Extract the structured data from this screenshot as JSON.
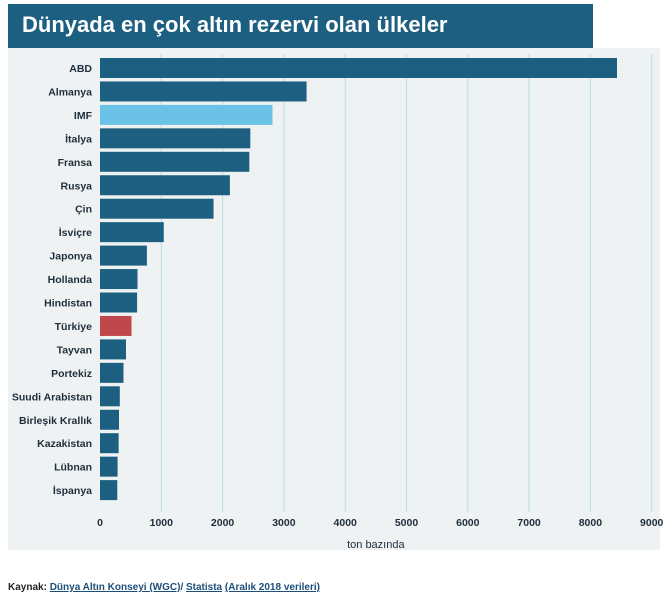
{
  "title": "Dünyada en çok altın rezervi olan ülkeler",
  "footer": {
    "label": "Kaynak:",
    "source1": "Dünya Altın Konseyi (WGC)",
    "separator": "/",
    "source2": "Statista",
    "note": "(Aralık 2018 verileri)"
  },
  "colors": {
    "bar": "#1d5f80",
    "imf": "#6cc1e6",
    "turkey": "#c0474b",
    "title_bg": "#1d5f80",
    "panel_bg": "#eef2f3",
    "grid": "#b9dce0"
  },
  "chart_data": {
    "type": "bar",
    "orientation": "horizontal",
    "title": "Dünyada en çok altın rezervi olan ülkeler",
    "xlabel": "ton bazında",
    "ylabel": "",
    "xlim": [
      0,
      9000
    ],
    "xticks": [
      0,
      1000,
      2000,
      3000,
      4000,
      5000,
      6000,
      7000,
      8000,
      9000
    ],
    "grid": true,
    "categories": [
      "ABD",
      "Almanya",
      "IMF",
      "İtalya",
      "Fransa",
      "Rusya",
      "Çin",
      "İsviçre",
      "Japonya",
      "Hollanda",
      "Hindistan",
      "Türkiye",
      "Tayvan",
      "Portekiz",
      "Suudi Arabistan",
      "Birleşik Krallık",
      "Kazakistan",
      "Lübnan",
      "İspanya"
    ],
    "values": [
      8434,
      3370,
      2814,
      2452,
      2436,
      2119,
      1852,
      1040,
      765,
      612,
      605,
      514,
      424,
      383,
      323,
      310,
      304,
      287,
      282
    ],
    "highlight": {
      "IMF": "imf",
      "Türkiye": "turkey"
    }
  }
}
